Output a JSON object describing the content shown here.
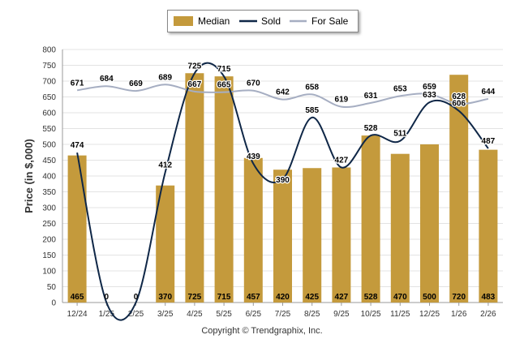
{
  "chart_data": {
    "type": "bar+line",
    "categories": [
      "12/24",
      "1/25",
      "2/25",
      "3/25",
      "4/25",
      "5/25",
      "6/25",
      "7/25",
      "8/25",
      "9/25",
      "10/25",
      "11/25",
      "12/25",
      "1/26",
      "2/26"
    ],
    "series": [
      {
        "name": "Median",
        "type": "bar",
        "values": [
          465,
          0,
          0,
          370,
          725,
          715,
          457,
          420,
          425,
          427,
          528,
          470,
          500,
          720,
          483
        ],
        "labels": [
          "465",
          "0",
          "0",
          "370",
          "725",
          "715",
          "457",
          "420",
          "425",
          "427",
          "528",
          "470",
          "500",
          "720",
          "483"
        ]
      },
      {
        "name": "Sold",
        "type": "line",
        "values": [
          474,
          0,
          0,
          412,
          725,
          715,
          439,
          390,
          585,
          427,
          528,
          511,
          633,
          606,
          487
        ],
        "labels": [
          "474",
          "",
          "",
          "412",
          "725",
          "715",
          "439",
          "390",
          "585",
          "427",
          "528",
          "511",
          "633",
          "606",
          "487"
        ]
      },
      {
        "name": "For Sale",
        "type": "line",
        "values": [
          671,
          684,
          669,
          689,
          667,
          665,
          670,
          642,
          658,
          619,
          631,
          653,
          659,
          628,
          644
        ],
        "labels": [
          "671",
          "684",
          "669",
          "689",
          "667",
          "665",
          "670",
          "642",
          "658",
          "619",
          "631",
          "653",
          "659",
          "628",
          "644"
        ]
      }
    ],
    "colors": {
      "Median": "#c49a3c",
      "Sold": "#0f2747",
      "For Sale": "#a6aec2"
    },
    "ylabel": "Price (in $,000)",
    "ylim": [
      0,
      800
    ],
    "yticks": [
      "0",
      "50",
      "100",
      "150",
      "200",
      "250",
      "300",
      "350",
      "400",
      "450",
      "500",
      "550",
      "600",
      "650",
      "700",
      "750",
      "800"
    ],
    "legend": [
      "Median",
      "Sold",
      "For Sale"
    ],
    "legend_position": "top-center",
    "grid": true
  },
  "footer": {
    "copyright": "Copyright © Trendgraphix, Inc."
  }
}
